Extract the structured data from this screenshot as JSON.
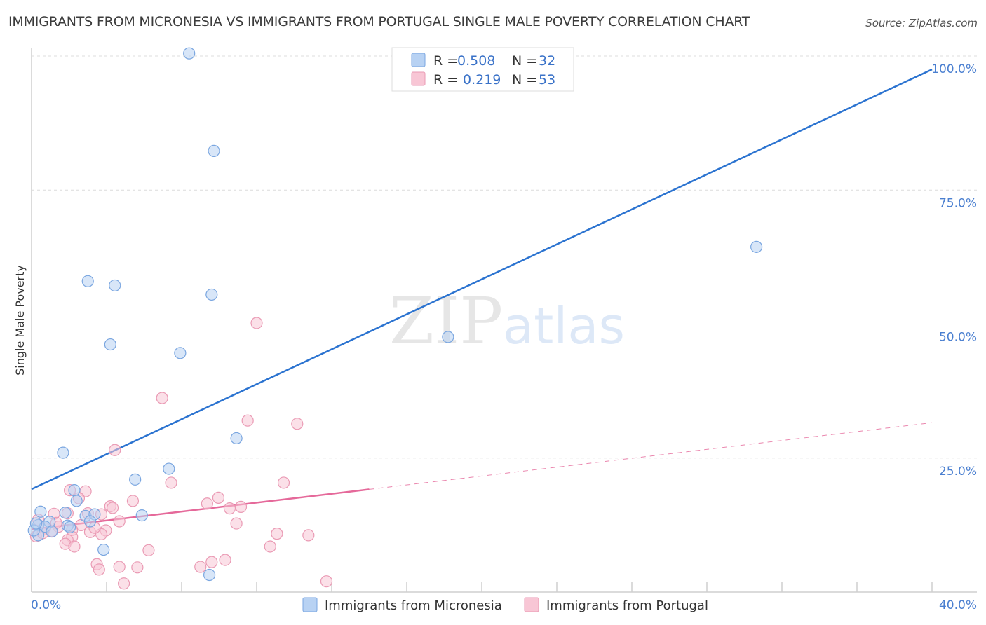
{
  "title": "IMMIGRANTS FROM MICRONESIA VS IMMIGRANTS FROM PORTUGAL SINGLE MALE POVERTY CORRELATION CHART",
  "source": "Source: ZipAtlas.com",
  "watermark": {
    "zip": "ZIP",
    "atlas": "atlas"
  },
  "colors": {
    "micronesia_fill": "#b8d2f3",
    "micronesia_stroke": "#7aa6e0",
    "micronesia_line": "#2b73d0",
    "portugal_fill": "#f8c6d5",
    "portugal_stroke": "#ea9ab4",
    "portugal_line": "#e5699a",
    "tick_text": "#4a7fd0",
    "grid": "#dcdcdc"
  },
  "legend": {
    "r_label": "R =",
    "n_label": "N =",
    "rows": [
      {
        "series": "micronesia",
        "r": "0.508",
        "n": "32"
      },
      {
        "series": "portugal",
        "r": "0.219",
        "n": "53"
      }
    ]
  },
  "chart_data": {
    "type": "scatter",
    "title": "IMMIGRANTS FROM MICRONESIA VS IMMIGRANTS FROM PORTUGAL SINGLE MALE POVERTY CORRELATION CHART",
    "xlabel": "",
    "ylabel": "Single Male Poverty",
    "xlim": [
      0,
      40
    ],
    "ylim": [
      0,
      100
    ],
    "x_tick_labels": [
      "0.0%",
      "40.0%"
    ],
    "y_tick_labels": [
      "25.0%",
      "50.0%",
      "75.0%",
      "100.0%"
    ],
    "y_ticks": [
      25,
      50,
      75,
      100
    ],
    "grid": true,
    "legend_position": "top-center",
    "series": [
      {
        "name": "Immigrants from Micronesia",
        "color": "#b8d2f3",
        "r": 0.508,
        "n": 32,
        "trend": {
          "x": [
            0,
            40
          ],
          "y": [
            19.2,
            97.5
          ],
          "dashed_beyond_x": null
        },
        "points": [
          [
            7.0,
            100.5
          ],
          [
            8.1,
            82.3
          ],
          [
            2.5,
            58.0
          ],
          [
            3.7,
            57.2
          ],
          [
            8.0,
            55.5
          ],
          [
            3.5,
            46.2
          ],
          [
            6.6,
            44.6
          ],
          [
            18.5,
            47.6
          ],
          [
            32.2,
            64.4
          ],
          [
            9.1,
            28.7
          ],
          [
            1.4,
            26.0
          ],
          [
            6.1,
            23.0
          ],
          [
            4.6,
            21.0
          ],
          [
            1.9,
            19.0
          ],
          [
            2.0,
            17.0
          ],
          [
            1.5,
            14.8
          ],
          [
            0.4,
            15.0
          ],
          [
            0.3,
            12.5
          ],
          [
            0.8,
            13.1
          ],
          [
            2.4,
            14.2
          ],
          [
            2.8,
            14.5
          ],
          [
            2.6,
            13.2
          ],
          [
            4.9,
            14.3
          ],
          [
            1.6,
            12.4
          ],
          [
            1.7,
            12.1
          ],
          [
            0.6,
            12.2
          ],
          [
            0.9,
            11.3
          ],
          [
            0.3,
            10.6
          ],
          [
            0.1,
            11.5
          ],
          [
            3.2,
            7.9
          ],
          [
            7.9,
            3.2
          ],
          [
            0.2,
            12.8
          ]
        ]
      },
      {
        "name": "Immigrants from Portugal",
        "color": "#f8c6d5",
        "r": 0.219,
        "n": 53,
        "trend": {
          "x": [
            0,
            40
          ],
          "y": [
            11.7,
            31.6
          ],
          "dashed_beyond_x": 15.0
        },
        "points": [
          [
            10.0,
            50.2
          ],
          [
            5.8,
            36.2
          ],
          [
            9.6,
            32.0
          ],
          [
            11.8,
            31.4
          ],
          [
            3.7,
            26.5
          ],
          [
            6.2,
            20.4
          ],
          [
            11.2,
            20.4
          ],
          [
            1.7,
            19.0
          ],
          [
            2.4,
            18.8
          ],
          [
            2.1,
            17.5
          ],
          [
            4.5,
            17.0
          ],
          [
            8.3,
            17.6
          ],
          [
            7.8,
            16.5
          ],
          [
            3.5,
            16.0
          ],
          [
            3.6,
            15.7
          ],
          [
            8.8,
            15.6
          ],
          [
            9.3,
            15.9
          ],
          [
            2.5,
            14.7
          ],
          [
            1.6,
            14.7
          ],
          [
            1.0,
            14.6
          ],
          [
            3.1,
            14.5
          ],
          [
            3.9,
            13.2
          ],
          [
            9.1,
            12.8
          ],
          [
            2.2,
            12.5
          ],
          [
            1.2,
            12.2
          ],
          [
            0.6,
            11.9
          ],
          [
            1.8,
            11.6
          ],
          [
            3.3,
            11.5
          ],
          [
            0.9,
            11.4
          ],
          [
            2.6,
            11.2
          ],
          [
            3.1,
            10.8
          ],
          [
            10.9,
            10.9
          ],
          [
            12.3,
            10.6
          ],
          [
            0.2,
            10.4
          ],
          [
            1.8,
            10.3
          ],
          [
            1.6,
            9.7
          ],
          [
            1.5,
            9.0
          ],
          [
            1.9,
            8.5
          ],
          [
            10.6,
            8.5
          ],
          [
            5.2,
            7.8
          ],
          [
            2.9,
            5.2
          ],
          [
            3.9,
            4.7
          ],
          [
            3.0,
            4.2
          ],
          [
            4.7,
            4.6
          ],
          [
            7.5,
            4.7
          ],
          [
            8.0,
            5.6
          ],
          [
            8.6,
            6.0
          ],
          [
            4.1,
            1.6
          ],
          [
            13.1,
            2.0
          ],
          [
            0.3,
            13.5
          ],
          [
            0.5,
            11.0
          ],
          [
            1.1,
            12.9
          ],
          [
            2.8,
            12.0
          ]
        ]
      }
    ]
  }
}
